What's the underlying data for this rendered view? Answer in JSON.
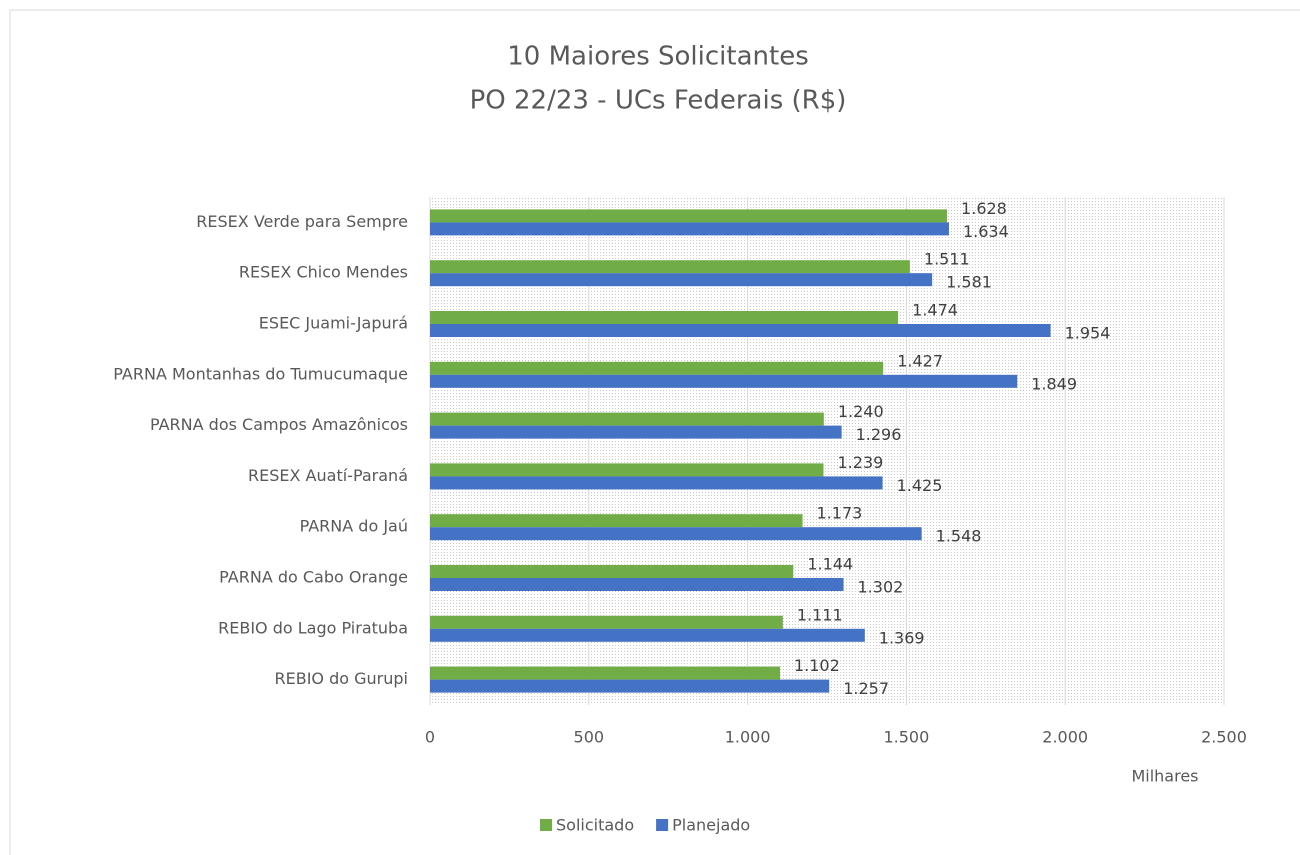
{
  "chart_data": {
    "type": "hbar",
    "title": "10 Maiores Solicitantes",
    "subtitle": "PO 22/23 - UCs Federais (R$)",
    "x_label": "Milhares",
    "categories": [
      "RESEX Verde para Sempre",
      "RESEX Chico Mendes",
      "ESEC Juami-Japurá",
      "PARNA Montanhas do Tumucumaque",
      "PARNA dos Campos Amazônicos",
      "RESEX Auatí-Paraná",
      "PARNA do Jaú",
      "PARNA do Cabo Orange",
      "REBIO do Lago Piratuba",
      "REBIO do Gurupi"
    ],
    "series": [
      {
        "name": "Solicitado",
        "color": "#70ad47",
        "values": [
          1628,
          1511,
          1474,
          1427,
          1240,
          1239,
          1173,
          1144,
          1111,
          1102
        ],
        "value_labels": [
          "1.628",
          "1.511",
          "1.474",
          "1.427",
          "1.240",
          "1.239",
          "1.173",
          "1.144",
          "1.111",
          "1.102"
        ]
      },
      {
        "name": "Planejado",
        "color": "#4472c4",
        "values": [
          1634,
          1581,
          1954,
          1849,
          1296,
          1425,
          1548,
          1302,
          1369,
          1257
        ],
        "value_labels": [
          "1.634",
          "1.581",
          "1.954",
          "1.849",
          "1.296",
          "1.425",
          "1.548",
          "1.302",
          "1.369",
          "1.257"
        ]
      }
    ],
    "xlim": [
      0,
      2500
    ],
    "xticks": [
      0,
      500,
      {
        "value": 1000,
        "label": "1.000"
      },
      {
        "value": 1500,
        "label": "1.500"
      },
      {
        "value": 2000,
        "label": "2.000"
      },
      {
        "value": 2500,
        "label": "2.500"
      }
    ],
    "grid": true,
    "legend": "bottom"
  }
}
